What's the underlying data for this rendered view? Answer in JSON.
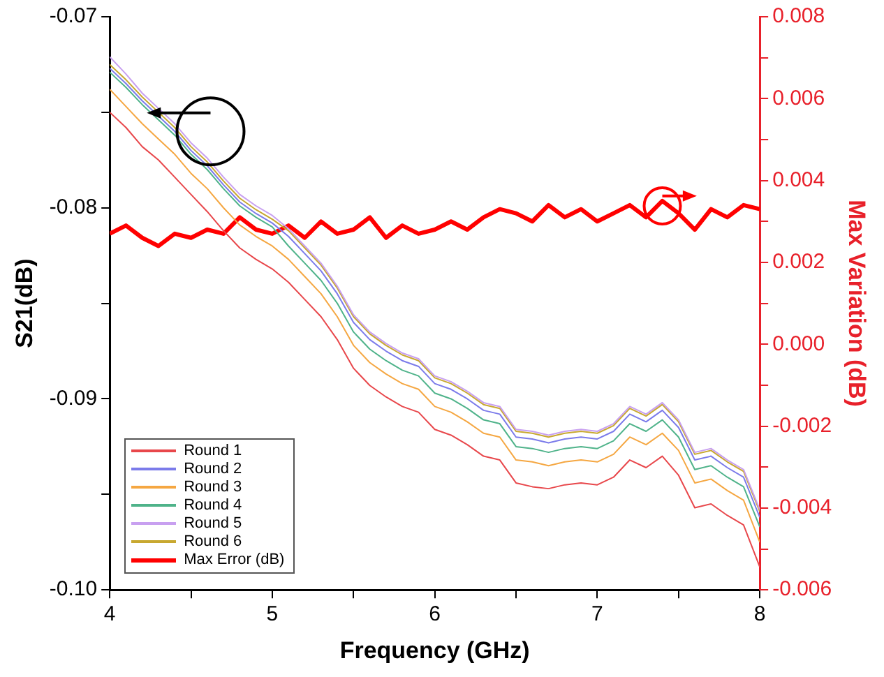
{
  "chart_data": {
    "type": "line",
    "xlabel": "Frequency (GHz)",
    "ylabel": "S21(dB)",
    "y2label": "Max Variation (dB)",
    "x": [
      4.0,
      4.1,
      4.2,
      4.3,
      4.4,
      4.5,
      4.6,
      4.7,
      4.8,
      4.9,
      5.0,
      5.1,
      5.2,
      5.3,
      5.4,
      5.5,
      5.6,
      5.7,
      5.8,
      5.9,
      6.0,
      6.1,
      6.2,
      6.3,
      6.4,
      6.5,
      6.6,
      6.7,
      6.8,
      6.9,
      7.0,
      7.1,
      7.2,
      7.3,
      7.4,
      7.5,
      7.6,
      7.7,
      7.8,
      7.9,
      8.0
    ],
    "xlim": [
      4,
      8
    ],
    "xticks": [
      4,
      {
        "value": 4.5,
        "label": null
      },
      5,
      {
        "value": 5.5,
        "label": null
      },
      6,
      {
        "value": 6.5,
        "label": null
      },
      7,
      {
        "value": 7.5,
        "label": null
      },
      8
    ],
    "ylim": [
      -0.1,
      -0.07
    ],
    "yticks": [
      {
        "value": -0.1,
        "label": "-0.10"
      },
      {
        "value": -0.095,
        "label": null
      },
      {
        "value": -0.09,
        "label": "-0.09"
      },
      {
        "value": -0.085,
        "label": null
      },
      {
        "value": -0.08,
        "label": "-0.08"
      },
      {
        "value": -0.075,
        "label": null
      },
      {
        "value": -0.07,
        "label": "-0.07"
      }
    ],
    "y2lim": [
      -0.006,
      0.008
    ],
    "y2ticks": [
      {
        "value": -0.006,
        "label": "-0.006"
      },
      {
        "value": -0.005,
        "label": null
      },
      {
        "value": -0.004,
        "label": "-0.004"
      },
      {
        "value": -0.003,
        "label": null
      },
      {
        "value": -0.002,
        "label": "-0.002"
      },
      {
        "value": -0.001,
        "label": null
      },
      {
        "value": 0,
        "label": "0.000"
      },
      {
        "value": 0.001,
        "label": null
      },
      {
        "value": 0.002,
        "label": "0.002"
      },
      {
        "value": 0.003,
        "label": null
      },
      {
        "value": 0.004,
        "label": "0.004"
      },
      {
        "value": 0.005,
        "label": null
      },
      {
        "value": 0.006,
        "label": "0.006"
      },
      {
        "value": 0.007,
        "label": null
      },
      {
        "value": 0.008,
        "label": "0.008"
      }
    ],
    "grid": false,
    "legend": "bottom left",
    "marker": "none",
    "line_style": "solid",
    "series": [
      {
        "name": "Round 1",
        "color": "#e8474b",
        "values": [
          -0.075,
          -0.0758,
          -0.0768,
          -0.0775,
          -0.0784,
          -0.0793,
          -0.0802,
          -0.0812,
          -0.0821,
          -0.0827,
          -0.0832,
          -0.0839,
          -0.0848,
          -0.0857,
          -0.0869,
          -0.0884,
          -0.0893,
          -0.0899,
          -0.0904,
          -0.0907,
          -0.0916,
          -0.0919,
          -0.0924,
          -0.093,
          -0.0932,
          -0.0944,
          -0.0946,
          -0.0947,
          -0.0945,
          -0.0944,
          -0.0945,
          -0.0941,
          -0.0932,
          -0.0936,
          -0.093,
          -0.094,
          -0.0957,
          -0.0955,
          -0.0961,
          -0.0966,
          -0.0988
        ]
      },
      {
        "name": "Round 2",
        "color": "#7b7bea",
        "values": [
          -0.0727,
          -0.0735,
          -0.0744,
          -0.0752,
          -0.076,
          -0.077,
          -0.0778,
          -0.0788,
          -0.0797,
          -0.0803,
          -0.0808,
          -0.0815,
          -0.0824,
          -0.0833,
          -0.0845,
          -0.086,
          -0.0869,
          -0.0875,
          -0.088,
          -0.0883,
          -0.0892,
          -0.0895,
          -0.09,
          -0.0906,
          -0.0908,
          -0.092,
          -0.0921,
          -0.0923,
          -0.0921,
          -0.092,
          -0.0921,
          -0.0917,
          -0.0908,
          -0.0912,
          -0.0906,
          -0.0915,
          -0.0932,
          -0.093,
          -0.0936,
          -0.0941,
          -0.0962
        ]
      },
      {
        "name": "Round 3",
        "color": "#f5a742",
        "values": [
          -0.0738,
          -0.0747,
          -0.0756,
          -0.0764,
          -0.0772,
          -0.0782,
          -0.079,
          -0.08,
          -0.0809,
          -0.0815,
          -0.082,
          -0.0827,
          -0.0836,
          -0.0845,
          -0.0857,
          -0.0872,
          -0.0881,
          -0.0887,
          -0.0892,
          -0.0895,
          -0.0904,
          -0.0907,
          -0.0912,
          -0.0918,
          -0.092,
          -0.0932,
          -0.0933,
          -0.0935,
          -0.0933,
          -0.0932,
          -0.0933,
          -0.0929,
          -0.092,
          -0.0924,
          -0.0918,
          -0.0927,
          -0.0944,
          -0.0942,
          -0.0948,
          -0.0953,
          -0.0975
        ]
      },
      {
        "name": "Round 4",
        "color": "#4fb38a",
        "values": [
          -0.0729,
          -0.0737,
          -0.0746,
          -0.0754,
          -0.0762,
          -0.0772,
          -0.078,
          -0.079,
          -0.0799,
          -0.0805,
          -0.081,
          -0.082,
          -0.0829,
          -0.0838,
          -0.085,
          -0.0865,
          -0.0874,
          -0.088,
          -0.0885,
          -0.0888,
          -0.0897,
          -0.09,
          -0.0905,
          -0.0911,
          -0.0913,
          -0.0925,
          -0.0926,
          -0.0928,
          -0.0926,
          -0.0925,
          -0.0926,
          -0.0922,
          -0.0913,
          -0.0917,
          -0.0911,
          -0.092,
          -0.0937,
          -0.0935,
          -0.0941,
          -0.0946,
          -0.0967
        ]
      },
      {
        "name": "Round 5",
        "color": "#c8a0f0",
        "values": [
          -0.0721,
          -0.073,
          -0.074,
          -0.0748,
          -0.0756,
          -0.0766,
          -0.0774,
          -0.0784,
          -0.0793,
          -0.0799,
          -0.0804,
          -0.0811,
          -0.082,
          -0.0829,
          -0.0841,
          -0.0856,
          -0.0865,
          -0.0871,
          -0.0876,
          -0.0879,
          -0.0888,
          -0.0891,
          -0.0896,
          -0.0902,
          -0.0904,
          -0.0916,
          -0.0917,
          -0.0919,
          -0.0917,
          -0.0916,
          -0.0917,
          -0.0913,
          -0.0904,
          -0.0908,
          -0.0902,
          -0.0911,
          -0.0928,
          -0.0926,
          -0.0932,
          -0.0937,
          -0.0958
        ]
      },
      {
        "name": "Round 6",
        "color": "#c8a830",
        "values": [
          -0.0725,
          -0.0733,
          -0.0742,
          -0.075,
          -0.0758,
          -0.0768,
          -0.0776,
          -0.0786,
          -0.0795,
          -0.0801,
          -0.0806,
          -0.0812,
          -0.0821,
          -0.083,
          -0.0842,
          -0.0857,
          -0.0866,
          -0.0872,
          -0.0877,
          -0.088,
          -0.0889,
          -0.0892,
          -0.0897,
          -0.0903,
          -0.0905,
          -0.0917,
          -0.0918,
          -0.092,
          -0.0918,
          -0.0917,
          -0.0918,
          -0.0914,
          -0.0905,
          -0.0909,
          -0.0903,
          -0.0912,
          -0.0929,
          -0.0927,
          -0.0933,
          -0.0938,
          -0.0959
        ]
      },
      {
        "name": "Max Error (dB)",
        "color": "#ff0000",
        "axis": "y2",
        "values": [
          0.0027,
          0.0029,
          0.0026,
          0.0024,
          0.0027,
          0.0026,
          0.0028,
          0.0027,
          0.0031,
          0.0028,
          0.0027,
          0.0029,
          0.0026,
          0.003,
          0.0027,
          0.0028,
          0.0031,
          0.0026,
          0.0029,
          0.0027,
          0.0028,
          0.003,
          0.0028,
          0.0031,
          0.0033,
          0.0032,
          0.003,
          0.0034,
          0.0031,
          0.0033,
          0.003,
          0.0032,
          0.0034,
          0.0031,
          0.0035,
          0.0032,
          0.0028,
          0.0033,
          0.0031,
          0.0034,
          0.0033
        ]
      }
    ]
  }
}
